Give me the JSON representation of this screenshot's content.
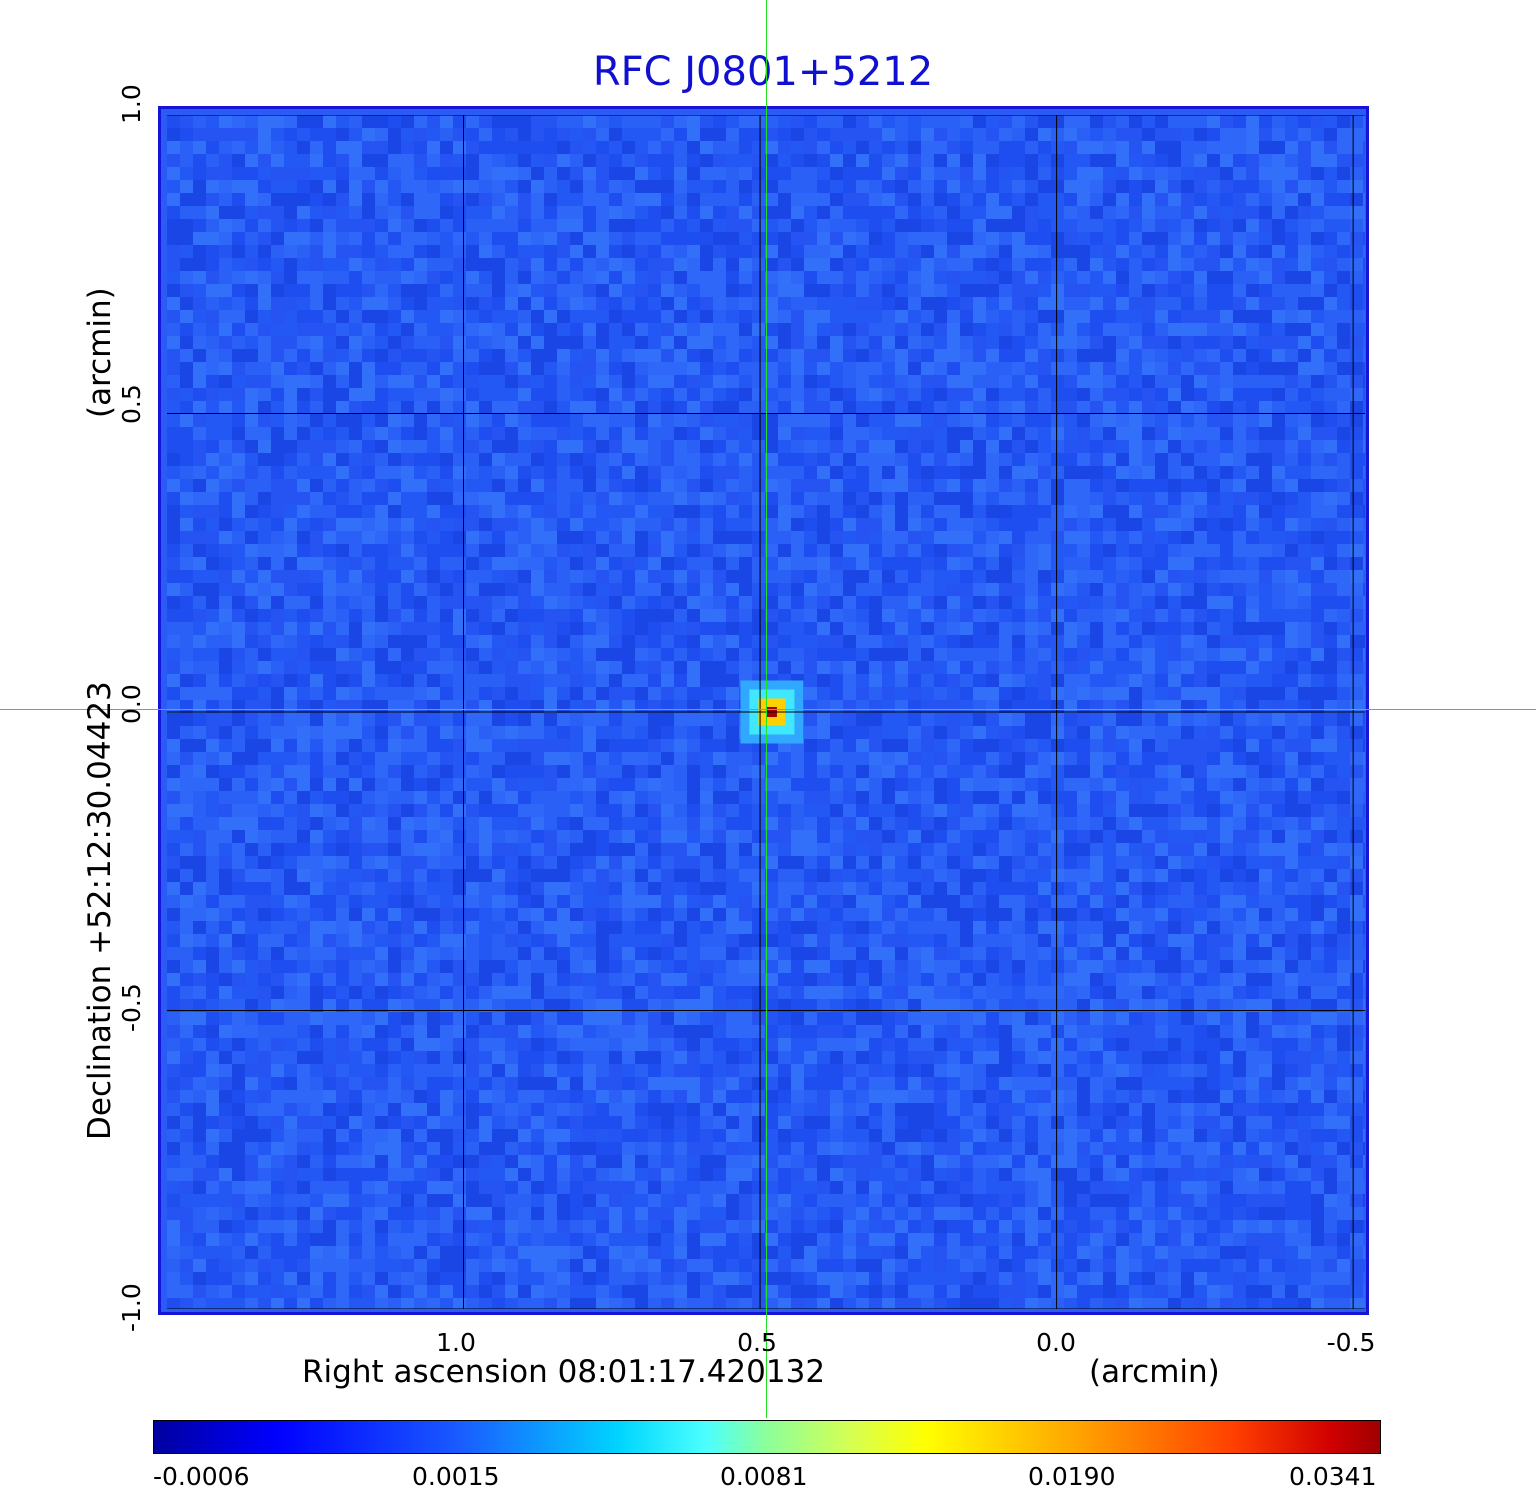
{
  "title": "RFC J0801+5212",
  "axes": {
    "xlabel": "Right ascension  08:01:17.420132",
    "xunit": "(arcmin)",
    "ylabel": "Declination  +52:12:30.04423",
    "yunit": "(arcmin)",
    "xticks": [
      "1.0",
      "0.5",
      "0.0",
      "-0.5"
    ],
    "yticks": [
      "1.0",
      "0.5",
      "0.0",
      "-0.5",
      "-1.0"
    ],
    "xlim": [
      1.5,
      -0.52
    ],
    "ylim": [
      -1.0,
      1.0
    ],
    "grid": true
  },
  "colorbar": {
    "ticks": [
      "-0.0006",
      "0.0015",
      "0.0081",
      "0.0190",
      "0.0341"
    ],
    "colormap": "jet"
  },
  "colors": {
    "title": "#1010d0",
    "frame": "#1515d8",
    "background_map": "#2a5cf5",
    "crosshair": "#22e022",
    "grid": "#000000"
  },
  "source": {
    "ra_offset_arcmin": 0.48,
    "dec_offset_arcmin": 0.0,
    "peak": 0.0341
  }
}
